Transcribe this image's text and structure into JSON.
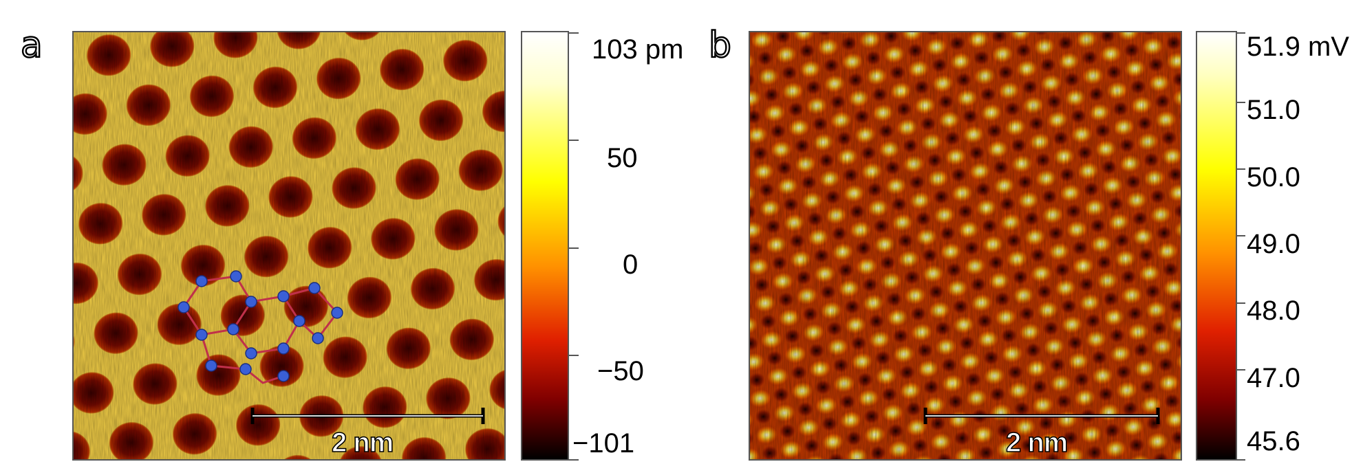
{
  "panels": [
    {
      "label": "a",
      "image_description_name": "stm-topography-honeycomb",
      "scale_bar": "2 nm",
      "colorbar": {
        "ticks": [
          "103 pm",
          "50",
          "0",
          "−50",
          "−101"
        ]
      }
    },
    {
      "label": "b",
      "image_description_name": "stm-dIdV-map",
      "scale_bar": "2 nm",
      "colorbar": {
        "ticks": [
          "51.9 mV",
          "51.0",
          "50.0",
          "49.0",
          "48.0",
          "47.0",
          "45.6"
        ]
      }
    }
  ],
  "colors": {
    "afmhot_low": "#000000",
    "afmhot_mid1": "#8b0000",
    "afmhot_mid2": "#ff6000",
    "afmhot_mid3": "#ffff00",
    "afmhot_high": "#ffffff",
    "atom_blue": "#3a5fd6",
    "bond_red": "#c0304a"
  }
}
